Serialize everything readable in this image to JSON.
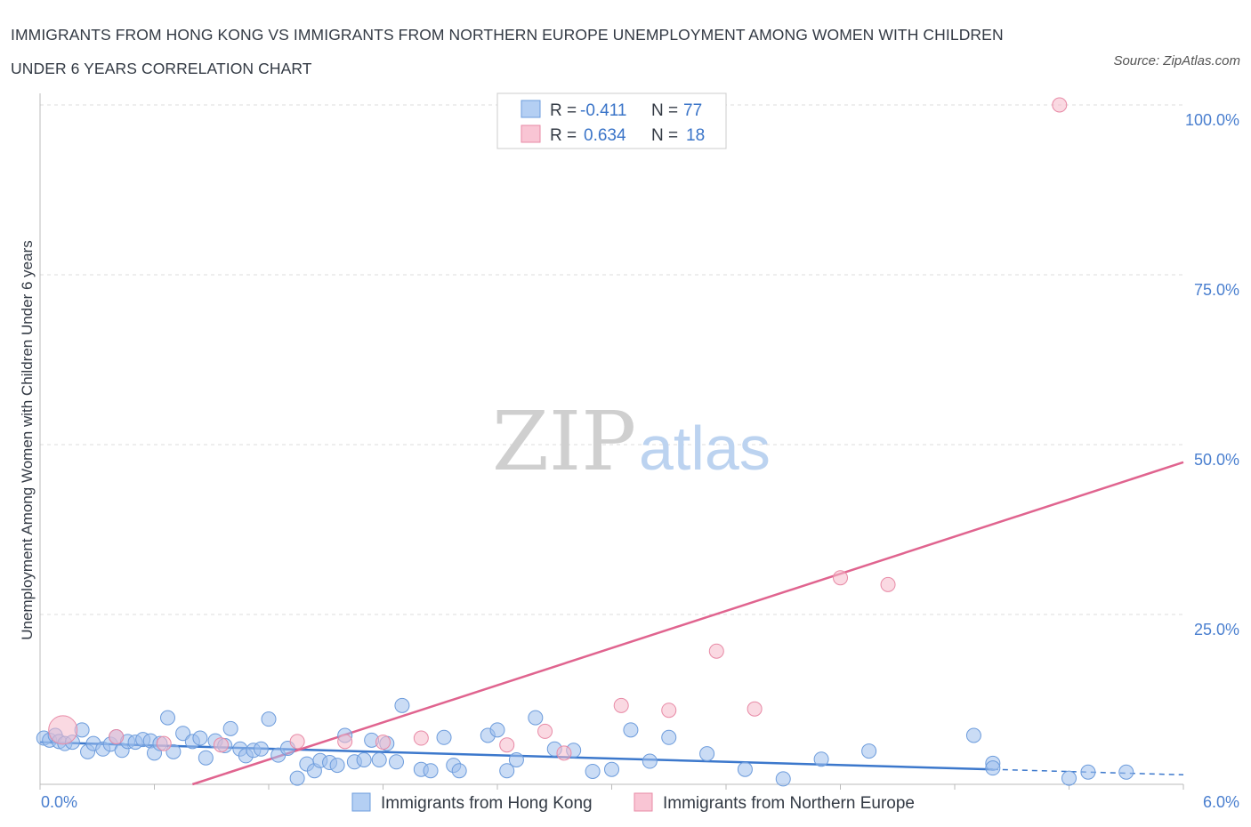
{
  "title_line1": "IMMIGRANTS FROM HONG KONG VS IMMIGRANTS FROM NORTHERN EUROPE UNEMPLOYMENT AMONG WOMEN WITH CHILDREN",
  "title_line2": "UNDER 6 YEARS CORRELATION CHART",
  "source": "Source: ZipAtlas.com",
  "watermark": {
    "zip": "ZIP",
    "atlas": "atlas"
  },
  "chart_data": {
    "type": "scatter",
    "title": "Immigrants from Hong Kong vs Immigrants from Northern Europe Unemployment Among Women with Children Under 6 years Correlation Chart",
    "xlabel": "",
    "ylabel": "Unemployment Among Women with Children Under 6 years",
    "xlim": [
      0,
      6
    ],
    "ylim": [
      0,
      100
    ],
    "x_tick_labels": [
      "0.0%",
      "6.0%"
    ],
    "y_ticks": [
      25,
      50,
      75,
      100
    ],
    "y_tick_labels": [
      "25.0%",
      "50.0%",
      "75.0%",
      "100.0%"
    ],
    "grid": true,
    "legend_box": {
      "rows": [
        {
          "r_label": "R =",
          "r_value": "-0.411",
          "n_label": "N =",
          "n_value": "77"
        },
        {
          "r_label": "R =",
          "r_value": "0.634",
          "n_label": "N =",
          "n_value": "18"
        }
      ]
    },
    "series": [
      {
        "name": "Immigrants from Hong Kong",
        "color": "#9ec0ec",
        "stroke": "#6d9cdc",
        "line_color": "#3c78cc",
        "trend": {
          "x0": 0.0,
          "y0": 6.2,
          "x1": 5.0,
          "y1": 2.2,
          "dash_to_x": 6.0,
          "dash_to_y": 1.4
        },
        "points": [
          [
            0.02,
            6.8
          ],
          [
            0.05,
            6.5
          ],
          [
            0.08,
            7.2
          ],
          [
            0.1,
            6.3
          ],
          [
            0.13,
            6.0
          ],
          [
            0.17,
            6.2
          ],
          [
            0.22,
            8.0
          ],
          [
            0.25,
            4.8
          ],
          [
            0.28,
            6.0
          ],
          [
            0.33,
            5.2
          ],
          [
            0.37,
            5.9
          ],
          [
            0.4,
            7.0
          ],
          [
            0.43,
            5.0
          ],
          [
            0.46,
            6.3
          ],
          [
            0.5,
            6.2
          ],
          [
            0.54,
            6.6
          ],
          [
            0.58,
            6.4
          ],
          [
            0.6,
            4.6
          ],
          [
            0.63,
            6.0
          ],
          [
            0.67,
            9.8
          ],
          [
            0.7,
            4.8
          ],
          [
            0.75,
            7.5
          ],
          [
            0.8,
            6.3
          ],
          [
            0.84,
            6.8
          ],
          [
            0.87,
            3.9
          ],
          [
            0.92,
            6.4
          ],
          [
            0.97,
            5.7
          ],
          [
            1.0,
            8.2
          ],
          [
            1.05,
            5.2
          ],
          [
            1.08,
            4.2
          ],
          [
            1.12,
            5.0
          ],
          [
            1.16,
            5.2
          ],
          [
            1.2,
            9.6
          ],
          [
            1.25,
            4.3
          ],
          [
            1.3,
            5.3
          ],
          [
            1.35,
            0.9
          ],
          [
            1.4,
            3.0
          ],
          [
            1.44,
            2.0
          ],
          [
            1.47,
            3.5
          ],
          [
            1.52,
            3.2
          ],
          [
            1.56,
            2.8
          ],
          [
            1.6,
            7.2
          ],
          [
            1.65,
            3.3
          ],
          [
            1.7,
            3.6
          ],
          [
            1.74,
            6.5
          ],
          [
            1.78,
            3.6
          ],
          [
            1.82,
            6.0
          ],
          [
            1.87,
            3.3
          ],
          [
            1.9,
            11.6
          ],
          [
            2.0,
            2.2
          ],
          [
            2.05,
            2.0
          ],
          [
            2.12,
            6.9
          ],
          [
            2.17,
            2.8
          ],
          [
            2.2,
            2.0
          ],
          [
            2.35,
            7.2
          ],
          [
            2.4,
            8.0
          ],
          [
            2.45,
            2.0
          ],
          [
            2.5,
            3.6
          ],
          [
            2.6,
            9.8
          ],
          [
            2.7,
            5.2
          ],
          [
            2.8,
            5.0
          ],
          [
            2.9,
            1.9
          ],
          [
            3.0,
            2.2
          ],
          [
            3.1,
            8.0
          ],
          [
            3.2,
            3.4
          ],
          [
            3.3,
            6.9
          ],
          [
            3.5,
            4.5
          ],
          [
            3.7,
            2.2
          ],
          [
            3.9,
            0.8
          ],
          [
            4.1,
            3.7
          ],
          [
            4.35,
            4.9
          ],
          [
            4.9,
            7.2
          ],
          [
            5.0,
            3.1
          ],
          [
            5.4,
            0.9
          ],
          [
            5.5,
            1.8
          ],
          [
            5.7,
            1.8
          ],
          [
            5.0,
            2.4
          ]
        ]
      },
      {
        "name": "Immigrants from Northern Europe",
        "color": "#f6b9cb",
        "stroke": "#e88aa6",
        "line_color": "#e0648f",
        "trend": {
          "x0": 0.8,
          "y0": 0.0,
          "x1": 6.0,
          "y1": 47.4
        },
        "points": [
          [
            0.12,
            8.0
          ],
          [
            0.4,
            7.0
          ],
          [
            0.65,
            6.0
          ],
          [
            0.95,
            5.8
          ],
          [
            1.35,
            6.3
          ],
          [
            1.6,
            6.3
          ],
          [
            1.8,
            6.2
          ],
          [
            2.0,
            6.8
          ],
          [
            2.45,
            5.8
          ],
          [
            2.65,
            7.8
          ],
          [
            2.75,
            4.6
          ],
          [
            3.05,
            11.6
          ],
          [
            3.3,
            10.9
          ],
          [
            3.55,
            19.6
          ],
          [
            3.75,
            11.1
          ],
          [
            4.2,
            30.4
          ],
          [
            4.45,
            29.4
          ],
          [
            5.35,
            100.0
          ]
        ]
      }
    ]
  },
  "bottom_legend": [
    {
      "label": "Immigrants from Hong Kong"
    },
    {
      "label": "Immigrants from Northern Europe"
    }
  ]
}
